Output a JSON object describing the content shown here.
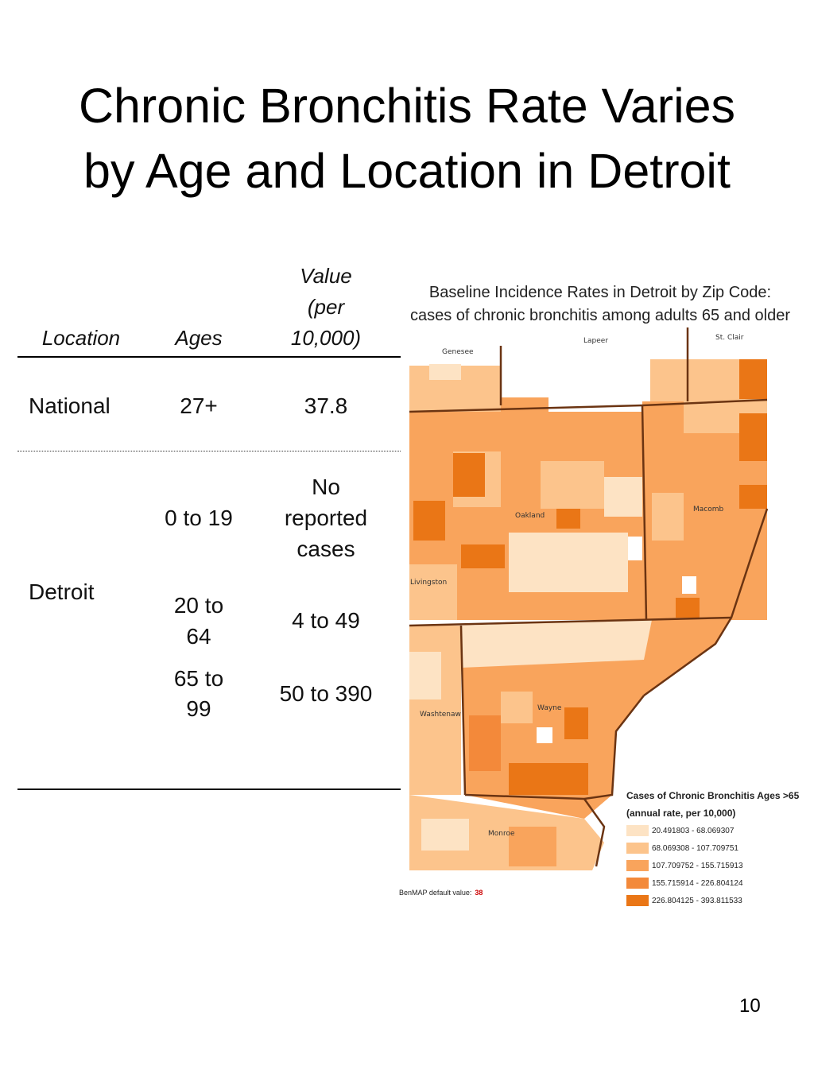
{
  "title": {
    "line1": "Chronic Bronchitis Rate Varies",
    "line2": "by Age and Location in Detroit"
  },
  "table": {
    "headers": {
      "location": "Location",
      "ages": "Ages",
      "value_line1": "Value",
      "value_line2": "(per",
      "value_line3": "10,000)"
    },
    "rows": {
      "national": {
        "location": "National",
        "ages": "27+",
        "value": "37.8"
      },
      "detroit": {
        "location": "Detroit",
        "r1_ages": "0 to 19",
        "r1_value_l1": "No",
        "r1_value_l2": "reported",
        "r1_value_l3": "cases",
        "r2_ages_l1": "20 to",
        "r2_ages_l2": "64",
        "r2_value": "4 to 49",
        "r3_ages_l1": "65 to",
        "r3_ages_l2": "99",
        "r3_value": "50 to 390"
      }
    }
  },
  "map": {
    "title_line1": "Baseline Incidence Rates in Detroit by Zip Code:",
    "title_line2": "cases of chronic bronchitis among adults 65 and older",
    "counties": {
      "genesee": "Genesee",
      "lapeer": "Lapeer",
      "st_clair": "St. Clair",
      "oakland": "Oakland",
      "macomb": "Macomb",
      "livingston": "Livingston",
      "wayne": "Wayne",
      "washtenaw": "Washtenaw",
      "monroe": "Monroe"
    },
    "legend": {
      "title_line1": "Cases of Chronic Bronchitis Ages >65",
      "title_line2": "(annual rate, per 10,000)",
      "items": [
        {
          "label": "20.491803 - 68.069307",
          "color": "#fde3c4"
        },
        {
          "label": "68.069308 - 107.709751",
          "color": "#fcc48c"
        },
        {
          "label": "107.709752 - 155.715913",
          "color": "#f9a45c"
        },
        {
          "label": "155.715914 - 226.804124",
          "color": "#f3893a"
        },
        {
          "label": "226.804125 - 393.811533",
          "color": "#ea7616"
        }
      ]
    },
    "benmap_label": "BenMAP default value:",
    "benmap_value": "38",
    "border_color": "#6b3412"
  },
  "page_number": "10"
}
